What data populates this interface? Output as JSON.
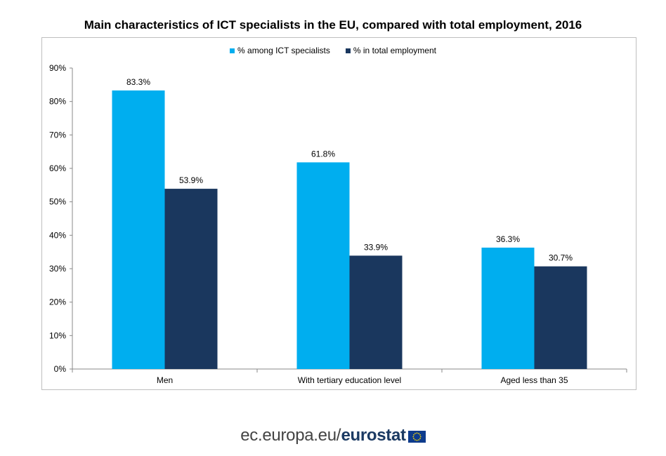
{
  "chart_data": {
    "type": "bar",
    "title": "Main characteristics of ICT specialists in the EU, compared with total employment, 2016",
    "categories": [
      "Men",
      "With tertiary education level",
      "Aged less than 35"
    ],
    "series": [
      {
        "name": "% among ICT specialists",
        "values": [
          83.3,
          61.8,
          36.3
        ],
        "color": "#00aeef",
        "labels": [
          "83.3%",
          "61.8%",
          "36.3%"
        ]
      },
      {
        "name": "% in total employment",
        "values": [
          53.9,
          33.9,
          30.7
        ],
        "color": "#1a375e",
        "labels": [
          "53.9%",
          "33.9%",
          "30.7%"
        ]
      }
    ],
    "ylim": [
      0,
      90
    ],
    "yticks": [
      0,
      10,
      20,
      30,
      40,
      50,
      60,
      70,
      80,
      90
    ],
    "ytick_labels": [
      "0%",
      "10%",
      "20%",
      "30%",
      "40%",
      "50%",
      "60%",
      "70%",
      "80%",
      "90%"
    ],
    "xlabel": "",
    "ylabel": "",
    "grid": false,
    "legend_position": "top"
  },
  "footer": {
    "site": "ec.europa.eu",
    "separator": "/",
    "brand": "eurostat"
  },
  "icons": {
    "flag": "eu-flag-icon"
  }
}
